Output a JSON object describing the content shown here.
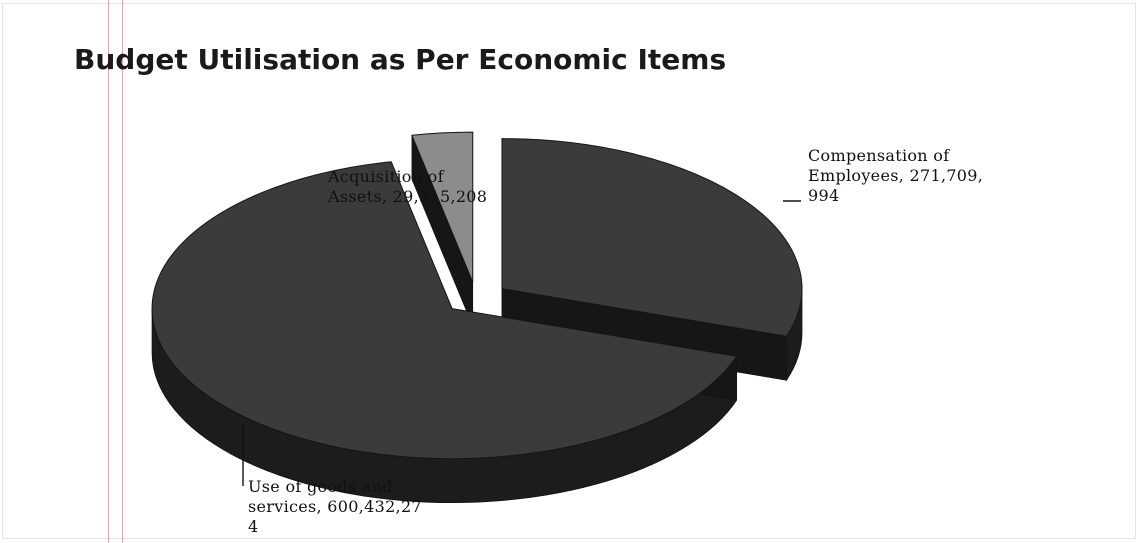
{
  "chart_data": {
    "type": "pie",
    "title": "Budget Utilisation as Per Economic Items",
    "slices": [
      {
        "label": "Compensation of Employees",
        "value": 271709994,
        "label_lines": [
          "Compensation of",
          "Employees, 271,709,",
          "994"
        ],
        "color": "#3b3b3b"
      },
      {
        "label": "Use of goods and services",
        "value": 600432274,
        "label_lines": [
          "Use of goods and",
          "services, 600,432,27",
          "4"
        ],
        "color": "#3b3b3b"
      },
      {
        "label": "Acquisition of Assets",
        "value": 29315208,
        "label_lines": [
          "Acquisition of",
          "Assets, 29,315,208"
        ],
        "color": "#8c8c8c"
      }
    ],
    "exploded": true,
    "three_d": true,
    "legend": "none"
  },
  "colors": {
    "margin_line": "#e2a6b8",
    "side_shade": "#1c1c1c",
    "frame": "#e4e4e4"
  }
}
